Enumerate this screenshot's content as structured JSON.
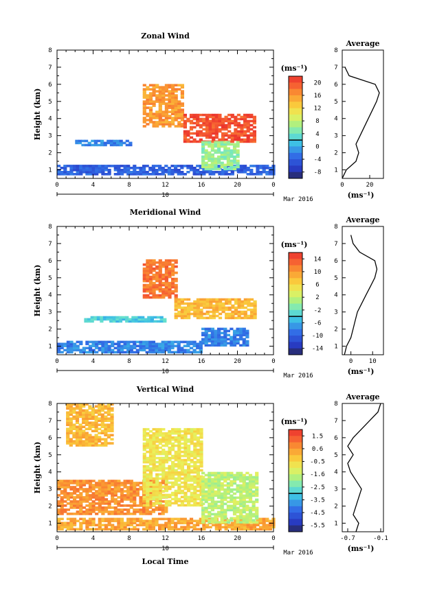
{
  "figure": {
    "xlabel": "Local Time",
    "date_day": "10",
    "date_month": "Mar 2016",
    "unit": "(ms⁻¹)",
    "avg_title": "Average",
    "ylabel": "Height (km)"
  },
  "chart_data": [
    {
      "id": "zonal",
      "type": "heatmap",
      "title": "Zonal Wind",
      "xlabel": "Local Time",
      "ylabel": "Height (km)",
      "xlim": [
        0,
        24
      ],
      "ylim": [
        0.5,
        8
      ],
      "x_ticks": [
        "0",
        "4",
        "8",
        "12",
        "16",
        "20",
        "0"
      ],
      "y_ticks": [
        "1",
        "2",
        "3",
        "4",
        "5",
        "6",
        "7",
        "8"
      ],
      "colorbar": {
        "unit": "(ms⁻¹)",
        "ticks": [
          "20",
          "16",
          "12",
          "8",
          "4",
          "0",
          "-4",
          "-8"
        ],
        "range": [
          -10,
          22
        ]
      },
      "regions": [
        {
          "x": [
            0,
            24
          ],
          "y": [
            0.7,
            1.3
          ],
          "value": -4
        },
        {
          "x": [
            2,
            8
          ],
          "y": [
            2.4,
            2.7
          ],
          "value": -2
        },
        {
          "x": [
            9.5,
            14
          ],
          "y": [
            3.5,
            6.0
          ],
          "value": 16
        },
        {
          "x": [
            14,
            22
          ],
          "y": [
            2.6,
            4.2
          ],
          "value": 20
        },
        {
          "x": [
            16,
            20
          ],
          "y": [
            1.0,
            2.6
          ],
          "value": 6
        }
      ],
      "average": {
        "title": "Average",
        "xlabel": "(ms⁻¹)",
        "x_ticks": [
          "0",
          "20"
        ],
        "xlim": [
          0,
          30
        ],
        "height": [
          0.5,
          1.0,
          1.5,
          2.0,
          2.5,
          3.0,
          3.5,
          4.0,
          4.5,
          5.0,
          5.5,
          6.0,
          6.5,
          7.0
        ],
        "values": [
          0,
          3,
          10,
          12,
          10,
          13,
          16,
          19,
          22,
          25,
          27,
          24,
          5,
          2
        ]
      }
    },
    {
      "id": "meridional",
      "type": "heatmap",
      "title": "Meridional Wind",
      "xlabel": "Local Time",
      "ylabel": "Height (km)",
      "xlim": [
        0,
        24
      ],
      "ylim": [
        0.5,
        8
      ],
      "x_ticks": [
        "0",
        "4",
        "8",
        "12",
        "16",
        "20",
        "0"
      ],
      "y_ticks": [
        "1",
        "2",
        "3",
        "4",
        "5",
        "6",
        "7",
        "8"
      ],
      "colorbar": {
        "unit": "(ms⁻¹)",
        "ticks": [
          "14",
          "10",
          "6",
          "2",
          "-2",
          "-6",
          "-10",
          "-14"
        ],
        "range": [
          -16,
          16
        ]
      },
      "regions": [
        {
          "x": [
            0,
            16
          ],
          "y": [
            0.6,
            1.3
          ],
          "value": -8
        },
        {
          "x": [
            3,
            12
          ],
          "y": [
            2.4,
            2.7
          ],
          "value": -4
        },
        {
          "x": [
            9.5,
            13
          ],
          "y": [
            3.8,
            6.0
          ],
          "value": 12
        },
        {
          "x": [
            13,
            22
          ],
          "y": [
            2.6,
            3.8
          ],
          "value": 8
        },
        {
          "x": [
            16,
            21
          ],
          "y": [
            1.0,
            2.0
          ],
          "value": -8
        }
      ],
      "average": {
        "title": "Average",
        "xlabel": "(ms⁻¹)",
        "x_ticks": [
          "0",
          "10"
        ],
        "xlim": [
          -4,
          15
        ],
        "height": [
          0.5,
          1.0,
          1.5,
          2.0,
          2.5,
          3.0,
          3.5,
          4.0,
          4.5,
          5.0,
          5.5,
          6.0,
          6.5,
          7.0,
          7.5
        ],
        "values": [
          -3,
          -2,
          0,
          1,
          2,
          3,
          5,
          7,
          9,
          11,
          12,
          11,
          4,
          1,
          0
        ]
      }
    },
    {
      "id": "vertical",
      "type": "heatmap",
      "title": "Vertical Wind",
      "xlabel": "Local Time",
      "ylabel": "Height (km)",
      "xlim": [
        0,
        24
      ],
      "ylim": [
        0.5,
        8
      ],
      "x_ticks": [
        "0",
        "4",
        "8",
        "12",
        "16",
        "20",
        "0"
      ],
      "y_ticks": [
        "1",
        "2",
        "3",
        "4",
        "5",
        "6",
        "7",
        "8"
      ],
      "colorbar": {
        "unit": "(ms⁻¹)",
        "ticks": [
          "1.5",
          "0.6",
          "-0.5",
          "-1.6",
          "-2.5",
          "-3.5",
          "-4.5",
          "-5.5"
        ],
        "range": [
          -6,
          2
        ]
      },
      "regions": [
        {
          "x": [
            0,
            24
          ],
          "y": [
            0.6,
            1.3
          ],
          "value": 0.3
        },
        {
          "x": [
            0,
            12
          ],
          "y": [
            1.5,
            3.5
          ],
          "value": 0.6
        },
        {
          "x": [
            1,
            6
          ],
          "y": [
            5.5,
            8.0
          ],
          "value": 0.0
        },
        {
          "x": [
            9.5,
            16
          ],
          "y": [
            2.0,
            6.5
          ],
          "value": -0.8
        },
        {
          "x": [
            16,
            22
          ],
          "y": [
            1.0,
            4.0
          ],
          "value": -1.6
        }
      ],
      "average": {
        "title": "Average",
        "xlabel": "(ms⁻¹)",
        "x_ticks": [
          "-0.7",
          "-0.1"
        ],
        "xlim": [
          -0.8,
          -0.05
        ],
        "height": [
          0.5,
          1.0,
          1.5,
          2.0,
          2.5,
          3.0,
          3.5,
          4.0,
          4.5,
          5.0,
          5.5,
          6.0,
          6.5,
          7.0,
          7.5,
          8.0
        ],
        "values": [
          -0.55,
          -0.5,
          -0.6,
          -0.55,
          -0.5,
          -0.45,
          -0.55,
          -0.65,
          -0.7,
          -0.6,
          -0.7,
          -0.6,
          -0.45,
          -0.3,
          -0.15,
          -0.1
        ]
      }
    }
  ]
}
